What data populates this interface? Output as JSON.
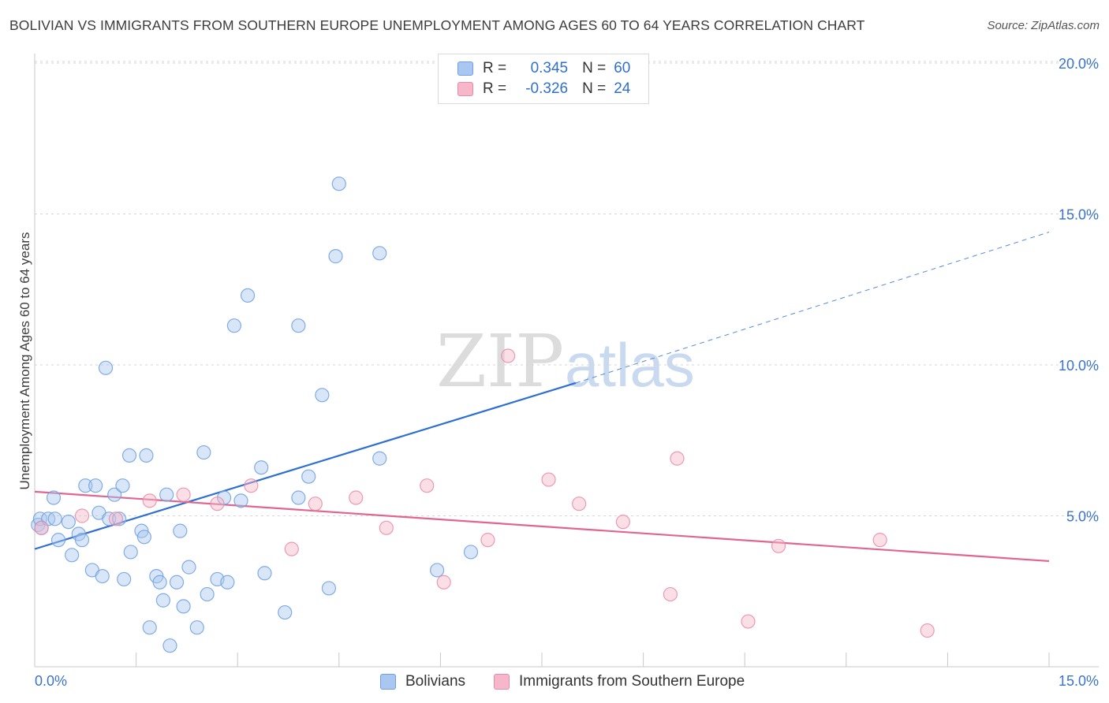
{
  "title": "BOLIVIAN VS IMMIGRANTS FROM SOUTHERN EUROPE UNEMPLOYMENT AMONG AGES 60 TO 64 YEARS CORRELATION CHART",
  "source": "Source: ZipAtlas.com",
  "watermark": {
    "zip": "ZIP",
    "atlas": "atlas"
  },
  "legend": {
    "r_label": "R =",
    "n_label": "N =",
    "rows": [
      {
        "r": "0.345",
        "n": "60",
        "color": "#a9c7f0"
      },
      {
        "r": "-0.326",
        "n": "24",
        "color": "#f6b7ca"
      }
    ]
  },
  "bottom_legend": [
    {
      "label": "Bolivians",
      "color": "#a9c7f0"
    },
    {
      "label": "Immigrants from Southern Europe",
      "color": "#f6b7ca"
    }
  ],
  "chart_data": {
    "type": "scatter",
    "title": "BOLIVIAN VS IMMIGRANTS FROM SOUTHERN EUROPE UNEMPLOYMENT AMONG AGES 60 TO 64 YEARS CORRELATION CHART",
    "xlabel": "",
    "ylabel": "Unemployment Among Ages 60 to 64 years",
    "xlim": [
      0,
      15
    ],
    "ylim": [
      0,
      20
    ],
    "x_tick_labels": [
      "0.0%",
      "15.0%"
    ],
    "y_ticks": [
      5,
      10,
      15,
      20
    ],
    "y_tick_labels": [
      "5.0%",
      "10.0%",
      "15.0%",
      "20.0%"
    ],
    "grid": true,
    "series": [
      {
        "name": "Bolivians",
        "color": "#6f9fe0",
        "fill": "#a9c7f0",
        "trend": {
          "x": [
            0,
            8.0
          ],
          "y": [
            3.9,
            9.4
          ],
          "dashed_to": [
            15,
            14.4
          ],
          "color": "#2d6fd2"
        },
        "points": [
          [
            0.05,
            4.7
          ],
          [
            0.08,
            4.9
          ],
          [
            0.1,
            4.6
          ],
          [
            0.2,
            4.9
          ],
          [
            0.28,
            5.6
          ],
          [
            0.3,
            4.9
          ],
          [
            0.35,
            4.2
          ],
          [
            0.5,
            4.8
          ],
          [
            0.55,
            3.7
          ],
          [
            0.65,
            4.4
          ],
          [
            0.7,
            4.2
          ],
          [
            0.75,
            6.0
          ],
          [
            0.85,
            3.2
          ],
          [
            0.9,
            6.0
          ],
          [
            0.95,
            5.1
          ],
          [
            1.0,
            3.0
          ],
          [
            1.05,
            9.9
          ],
          [
            1.1,
            4.9
          ],
          [
            1.18,
            5.7
          ],
          [
            1.25,
            4.9
          ],
          [
            1.3,
            6.0
          ],
          [
            1.32,
            2.9
          ],
          [
            1.4,
            7.0
          ],
          [
            1.42,
            3.8
          ],
          [
            1.58,
            4.5
          ],
          [
            1.62,
            4.3
          ],
          [
            1.65,
            7.0
          ],
          [
            1.7,
            1.3
          ],
          [
            1.8,
            3.0
          ],
          [
            1.85,
            2.8
          ],
          [
            1.9,
            2.2
          ],
          [
            1.95,
            5.7
          ],
          [
            2.0,
            0.7
          ],
          [
            2.1,
            2.8
          ],
          [
            2.15,
            4.5
          ],
          [
            2.2,
            2.0
          ],
          [
            2.28,
            3.3
          ],
          [
            2.4,
            1.3
          ],
          [
            2.5,
            7.1
          ],
          [
            2.55,
            2.4
          ],
          [
            2.7,
            2.9
          ],
          [
            2.8,
            5.6
          ],
          [
            2.85,
            2.8
          ],
          [
            2.95,
            11.3
          ],
          [
            3.05,
            5.5
          ],
          [
            3.15,
            12.3
          ],
          [
            3.35,
            6.6
          ],
          [
            3.4,
            3.1
          ],
          [
            3.9,
            11.3
          ],
          [
            3.9,
            5.6
          ],
          [
            4.05,
            6.3
          ],
          [
            4.25,
            9.0
          ],
          [
            4.35,
            2.6
          ],
          [
            4.45,
            13.6
          ],
          [
            4.5,
            16.0
          ],
          [
            5.1,
            13.7
          ],
          [
            5.1,
            6.9
          ],
          [
            5.95,
            3.2
          ],
          [
            6.45,
            3.8
          ],
          [
            3.7,
            1.8
          ]
        ]
      },
      {
        "name": "Immigrants from Southern Europe",
        "color": "#e98aa8",
        "fill": "#f6b7ca",
        "trend": {
          "x": [
            0,
            15
          ],
          "y": [
            5.8,
            3.5
          ],
          "color": "#e0668f"
        },
        "points": [
          [
            0.1,
            4.6
          ],
          [
            0.7,
            5.0
          ],
          [
            1.2,
            4.9
          ],
          [
            1.7,
            5.5
          ],
          [
            2.2,
            5.7
          ],
          [
            2.7,
            5.4
          ],
          [
            3.2,
            6.0
          ],
          [
            3.8,
            3.9
          ],
          [
            4.15,
            5.4
          ],
          [
            4.75,
            5.6
          ],
          [
            5.2,
            4.6
          ],
          [
            5.8,
            6.0
          ],
          [
            6.05,
            2.8
          ],
          [
            6.7,
            4.2
          ],
          [
            7.0,
            10.3
          ],
          [
            7.6,
            6.2
          ],
          [
            8.05,
            5.4
          ],
          [
            8.7,
            4.8
          ],
          [
            9.4,
            2.4
          ],
          [
            9.5,
            6.9
          ],
          [
            10.55,
            1.5
          ],
          [
            11.0,
            4.0
          ],
          [
            12.5,
            4.2
          ],
          [
            13.2,
            1.2
          ]
        ]
      }
    ]
  }
}
